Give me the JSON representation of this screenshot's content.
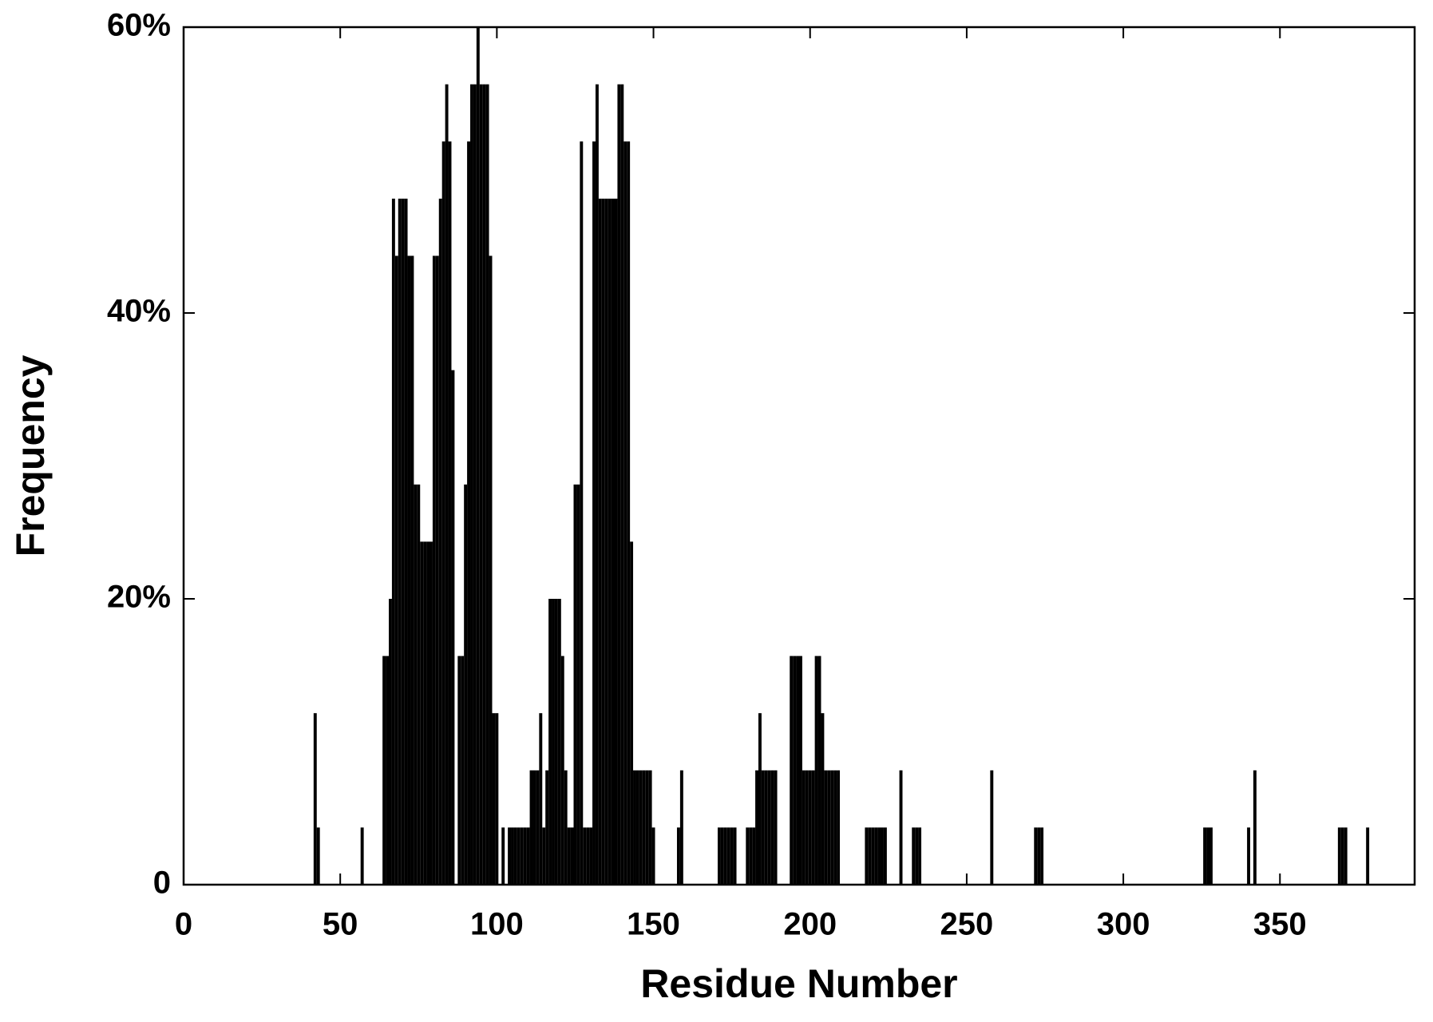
{
  "chart_data": {
    "type": "bar",
    "xlabel": "Residue Number",
    "ylabel": "Frequency",
    "color": "#000000",
    "x": [
      42,
      43,
      57,
      64,
      65,
      66,
      67,
      68,
      69,
      70,
      71,
      72,
      73,
      74,
      75,
      76,
      77,
      78,
      79,
      80,
      81,
      82,
      83,
      84,
      85,
      86,
      88,
      89,
      90,
      91,
      92,
      93,
      94,
      95,
      96,
      97,
      98,
      99,
      100,
      102,
      104,
      105,
      106,
      107,
      108,
      109,
      110,
      111,
      112,
      113,
      114,
      115,
      116,
      117,
      118,
      119,
      120,
      121,
      122,
      123,
      124,
      125,
      126,
      127,
      128,
      129,
      130,
      131,
      132,
      133,
      134,
      135,
      136,
      137,
      138,
      139,
      140,
      141,
      142,
      143,
      144,
      145,
      146,
      147,
      148,
      149,
      150,
      158,
      159,
      171,
      172,
      173,
      174,
      175,
      176,
      180,
      181,
      182,
      183,
      184,
      185,
      186,
      187,
      188,
      189,
      194,
      195,
      196,
      197,
      198,
      199,
      200,
      201,
      202,
      203,
      204,
      205,
      206,
      207,
      208,
      209,
      218,
      219,
      220,
      221,
      222,
      223,
      224,
      229,
      233,
      234,
      235,
      258,
      272,
      273,
      274,
      326,
      327,
      328,
      340,
      342,
      369,
      370,
      371,
      378
    ],
    "values": [
      12,
      4,
      4,
      16,
      16,
      20,
      48,
      44,
      48,
      48,
      48,
      44,
      44,
      28,
      28,
      24,
      24,
      24,
      24,
      44,
      44,
      48,
      52,
      56,
      52,
      36,
      16,
      16,
      28,
      52,
      56,
      56,
      60,
      56,
      56,
      56,
      44,
      12,
      12,
      4,
      4,
      4,
      4,
      4,
      4,
      4,
      4,
      8,
      8,
      8,
      12,
      4,
      8,
      20,
      20,
      20,
      20,
      16,
      8,
      4,
      4,
      28,
      28,
      52,
      4,
      4,
      4,
      52,
      56,
      48,
      48,
      48,
      48,
      48,
      48,
      56,
      56,
      52,
      52,
      24,
      8,
      8,
      8,
      8,
      8,
      8,
      4,
      4,
      8,
      4,
      4,
      4,
      4,
      4,
      4,
      4,
      4,
      4,
      8,
      12,
      8,
      8,
      8,
      8,
      8,
      16,
      16,
      16,
      16,
      8,
      8,
      8,
      8,
      16,
      16,
      12,
      8,
      8,
      8,
      8,
      8,
      4,
      4,
      4,
      4,
      4,
      4,
      4,
      8,
      4,
      4,
      4,
      8,
      4,
      4,
      4,
      4,
      4,
      4,
      4,
      8,
      4,
      4,
      4,
      4
    ],
    "xlim": [
      0,
      393
    ],
    "xticks": [
      0,
      50,
      100,
      150,
      200,
      250,
      300,
      350
    ],
    "ylim": [
      0,
      60
    ],
    "yticks": [
      0,
      {
        "value": 20,
        "label": "20%"
      },
      {
        "value": 40,
        "label": "40%"
      },
      {
        "value": 60,
        "label": "60%"
      }
    ]
  }
}
